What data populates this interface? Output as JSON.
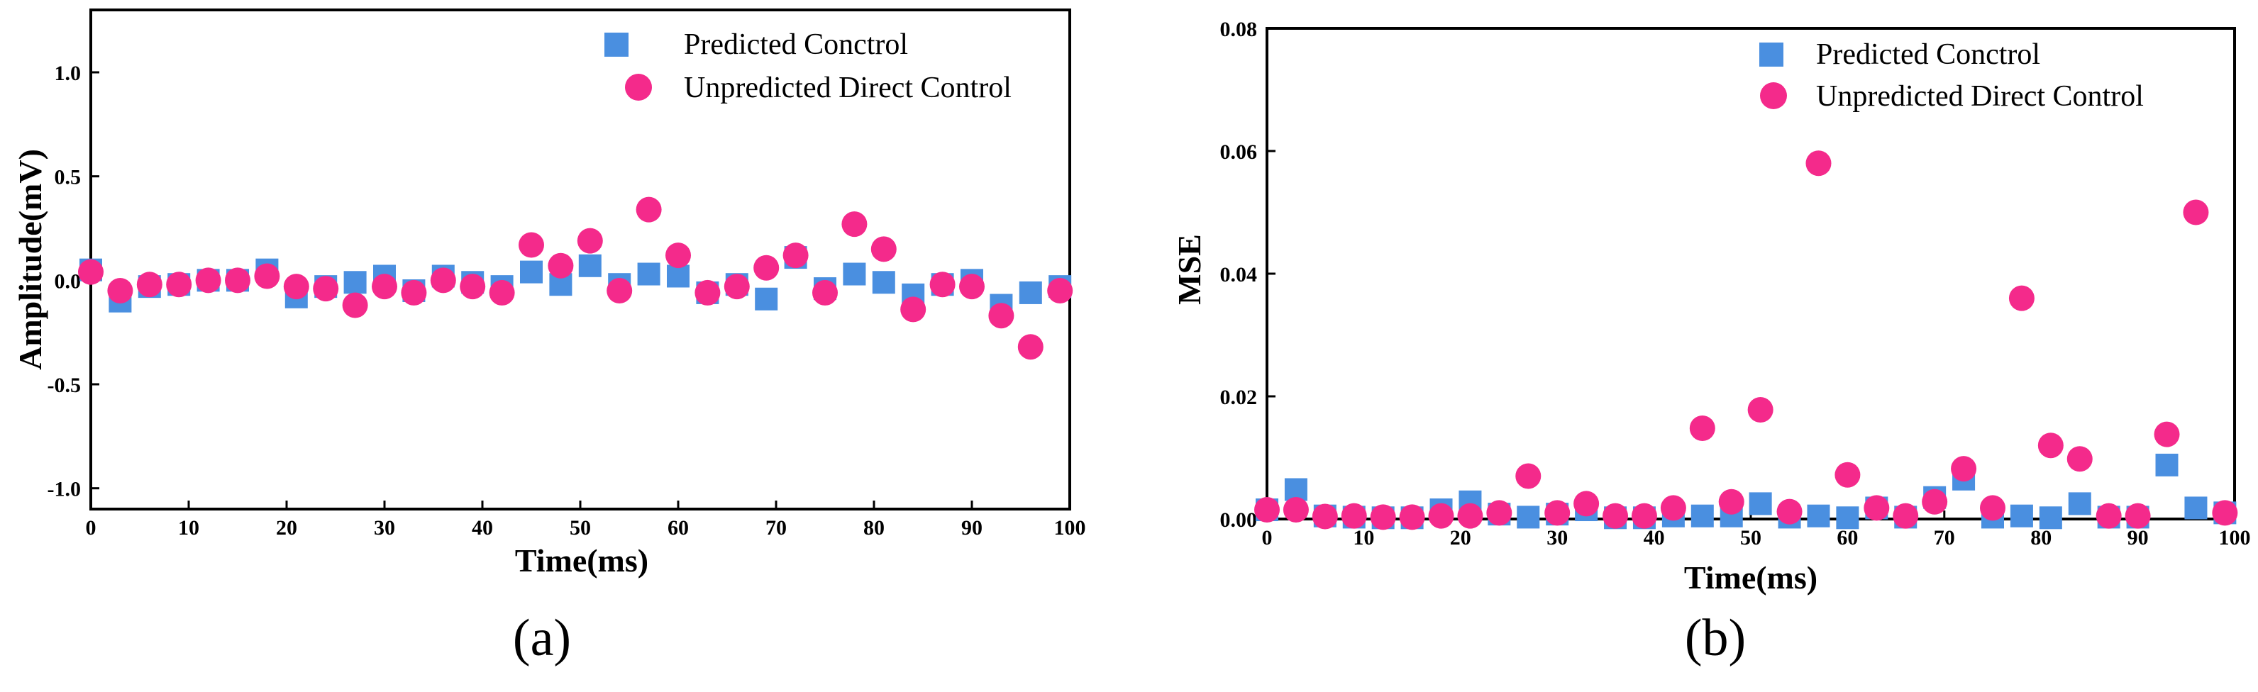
{
  "chart_data": [
    {
      "id": "a",
      "type": "scatter",
      "caption": "(a)",
      "xlabel": "Time(ms)",
      "ylabel": "Amplitude(mV)",
      "xlim": [
        0,
        100
      ],
      "ylim": [
        -1.1,
        1.3
      ],
      "xticks": [
        0,
        10,
        20,
        30,
        40,
        50,
        60,
        70,
        80,
        90,
        100
      ],
      "xtick_labels": [
        "0",
        "10",
        "20",
        "30",
        "40",
        "50",
        "60",
        "70",
        "80",
        "90",
        "100"
      ],
      "yticks": [
        1.0,
        0.5,
        0.0,
        -0.5,
        -1.0
      ],
      "ytick_labels": [
        "1.0",
        "0.5",
        "0.0",
        "-0.5",
        "-1.0"
      ],
      "legend_position": "top-right",
      "series": [
        {
          "name": "Predicted Conctrol",
          "marker": "square",
          "color": "#4A8FE0",
          "x": [
            0,
            3,
            6,
            9,
            12,
            15,
            18,
            21,
            24,
            27,
            30,
            33,
            36,
            39,
            42,
            45,
            48,
            51,
            54,
            57,
            60,
            63,
            66,
            69,
            72,
            75,
            78,
            81,
            84,
            87,
            90,
            93,
            96,
            99
          ],
          "y": [
            0.05,
            -0.1,
            -0.03,
            -0.02,
            0.0,
            0.0,
            0.05,
            -0.08,
            -0.03,
            -0.01,
            0.02,
            -0.05,
            0.02,
            -0.01,
            -0.03,
            0.04,
            -0.02,
            0.07,
            -0.02,
            0.03,
            0.02,
            -0.06,
            -0.02,
            -0.09,
            0.11,
            -0.04,
            0.03,
            -0.01,
            -0.07,
            -0.02,
            0.0,
            -0.12,
            -0.06,
            -0.03
          ]
        },
        {
          "name": "Unpredicted Direct Control",
          "marker": "circle",
          "color": "#F42A8B",
          "x": [
            0,
            3,
            6,
            9,
            12,
            15,
            18,
            21,
            24,
            27,
            30,
            33,
            36,
            39,
            42,
            45,
            48,
            51,
            54,
            57,
            60,
            63,
            66,
            69,
            72,
            75,
            78,
            81,
            84,
            87,
            90,
            93,
            96,
            99
          ],
          "y": [
            0.04,
            -0.05,
            -0.02,
            -0.02,
            0.0,
            0.0,
            0.02,
            -0.03,
            -0.04,
            -0.12,
            -0.03,
            -0.06,
            0.0,
            -0.03,
            -0.06,
            0.17,
            0.07,
            0.19,
            -0.05,
            0.34,
            0.12,
            -0.06,
            -0.03,
            0.06,
            0.12,
            -0.06,
            0.27,
            0.15,
            -0.14,
            -0.02,
            -0.03,
            -0.17,
            -0.32,
            -0.05
          ]
        }
      ]
    },
    {
      "id": "b",
      "type": "scatter",
      "caption": "(b)",
      "xlabel": "Time(ms)",
      "ylabel": "MSE",
      "xlim": [
        0,
        100
      ],
      "ylim": [
        0,
        0.08
      ],
      "xticks": [
        0,
        10,
        20,
        30,
        40,
        50,
        60,
        70,
        80,
        90,
        100
      ],
      "xtick_labels": [
        "0",
        "10",
        "20",
        "30",
        "40",
        "50",
        "60",
        "70",
        "80",
        "90",
        "100"
      ],
      "yticks": [
        0.0,
        0.02,
        0.04,
        0.06,
        0.08
      ],
      "ytick_labels": [
        "0.00",
        "0.02",
        "0.04",
        "0.06",
        "0.08"
      ],
      "legend_position": "top-right",
      "series": [
        {
          "name": "Predicted Conctrol",
          "marker": "square",
          "color": "#4A8FE0",
          "x": [
            0,
            3,
            6,
            9,
            12,
            15,
            18,
            21,
            24,
            27,
            30,
            33,
            36,
            39,
            42,
            45,
            48,
            51,
            54,
            57,
            60,
            63,
            66,
            69,
            72,
            75,
            78,
            81,
            84,
            87,
            90,
            93,
            96,
            99
          ],
          "y": [
            0.0015,
            0.0048,
            0.0005,
            0.0003,
            0.0002,
            0.0002,
            0.0015,
            0.0028,
            0.0008,
            0.0003,
            0.0008,
            0.0015,
            0.0002,
            0.0002,
            0.0005,
            0.0005,
            0.0005,
            0.0025,
            0.0003,
            0.0005,
            0.0002,
            0.0018,
            0.0003,
            0.0035,
            0.0065,
            0.0003,
            0.0005,
            0.0002,
            0.0025,
            0.0003,
            0.0003,
            0.0088,
            0.0018,
            0.001
          ]
        },
        {
          "name": "Unpredicted Direct Control",
          "marker": "circle",
          "color": "#F42A8B",
          "x": [
            0,
            3,
            6,
            9,
            12,
            15,
            18,
            21,
            24,
            27,
            30,
            33,
            36,
            39,
            42,
            45,
            48,
            51,
            54,
            57,
            60,
            63,
            66,
            69,
            72,
            75,
            78,
            81,
            84,
            87,
            90,
            93,
            96,
            99
          ],
          "y": [
            0.0015,
            0.0015,
            0.0004,
            0.0005,
            0.0003,
            0.0003,
            0.0005,
            0.0005,
            0.001,
            0.007,
            0.001,
            0.0025,
            0.0005,
            0.0005,
            0.0018,
            0.0148,
            0.0028,
            0.0178,
            0.0012,
            0.058,
            0.0072,
            0.0018,
            0.0005,
            0.0028,
            0.0082,
            0.0018,
            0.036,
            0.012,
            0.0098,
            0.0005,
            0.0005,
            0.0138,
            0.05,
            0.001
          ]
        }
      ]
    }
  ]
}
